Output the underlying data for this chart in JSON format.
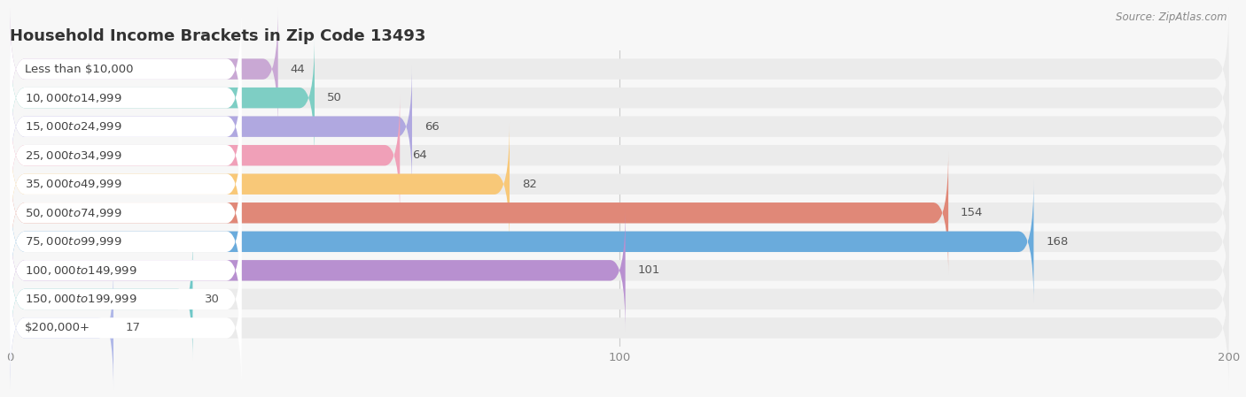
{
  "title": "Household Income Brackets in Zip Code 13493",
  "source": "Source: ZipAtlas.com",
  "categories": [
    "Less than $10,000",
    "$10,000 to $14,999",
    "$15,000 to $24,999",
    "$25,000 to $34,999",
    "$35,000 to $49,999",
    "$50,000 to $74,999",
    "$75,000 to $99,999",
    "$100,000 to $149,999",
    "$150,000 to $199,999",
    "$200,000+"
  ],
  "values": [
    44,
    50,
    66,
    64,
    82,
    154,
    168,
    101,
    30,
    17
  ],
  "bar_colors": [
    "#c9a8d4",
    "#7ecec4",
    "#b0a8e0",
    "#f0a0b8",
    "#f8c878",
    "#e08878",
    "#6aabdc",
    "#b890d0",
    "#70c8c8",
    "#b0b8e8"
  ],
  "xlim": [
    0,
    200
  ],
  "xticks": [
    0,
    100,
    200
  ],
  "background_color": "#f7f7f7",
  "row_bg_color": "#ebebeb",
  "white_color": "#ffffff",
  "title_fontsize": 13,
  "label_fontsize": 9.5,
  "value_fontsize": 9.5,
  "tick_fontsize": 9.5
}
